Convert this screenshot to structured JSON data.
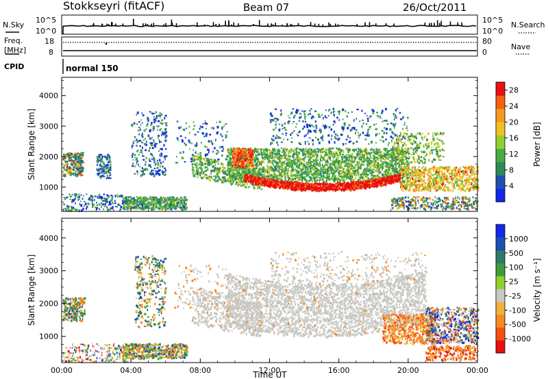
{
  "header": {
    "station": "Stokkseyri (fitACF)",
    "beam": "Beam 07",
    "date": "26/Oct/2011"
  },
  "sky_panel": {
    "left_label": "N.Sky",
    "right_label": "N.Search",
    "left_ticks": [
      "10^5",
      "10^0"
    ],
    "right_ticks": [
      "10^5",
      "10^0"
    ]
  },
  "freq_panel": {
    "left_label_1": "Freq.",
    "left_label_2": "[MHz]",
    "right_label": "Nave",
    "left_ticks": [
      "18",
      "8"
    ],
    "right_ticks": [
      "80",
      "0"
    ]
  },
  "cpid_panel": {
    "label": "CPID",
    "mode_text": "normal 150"
  },
  "colors": {
    "power": [
      "#1428e8",
      "#1e4fb4",
      "#2e8a5a",
      "#4caa44",
      "#90d030",
      "#f0c020",
      "#f59a20",
      "#f56010",
      "#e81010"
    ],
    "velocity_neg": [
      "#e81010",
      "#f55010",
      "#f58a20",
      "#f0b040"
    ],
    "velocity_mid": "#c8c8c4",
    "velocity_pos": [
      "#90d030",
      "#3f9a3a",
      "#2e7a68",
      "#1e4fb4",
      "#1428e8"
    ]
  },
  "chart_data": [
    {
      "type": "heatmap",
      "name": "power",
      "ylabel": "Slant Range [km]",
      "y_ticks": [
        "1000",
        "2000",
        "3000",
        "4000"
      ],
      "ylim": [
        200,
        4600
      ],
      "x_ticks": [
        "00:00",
        "04:00",
        "08:00",
        "12:00",
        "16:00",
        "20:00",
        "00:00"
      ],
      "xlim": [
        0,
        24
      ],
      "colorbar": {
        "label": "Power [dB]",
        "ticks": [
          "4",
          "8",
          "12",
          "16",
          "20",
          "24",
          "28"
        ],
        "range": [
          0,
          30
        ]
      }
    },
    {
      "type": "heatmap",
      "name": "velocity",
      "ylabel": "Slant Range [km]",
      "y_ticks": [
        "1000",
        "2000",
        "3000",
        "4000"
      ],
      "ylim": [
        200,
        4600
      ],
      "x_ticks": [
        "00:00",
        "04:00",
        "08:00",
        "12:00",
        "16:00",
        "20:00",
        "00:00"
      ],
      "xlabel": "Time UT",
      "xlim": [
        0,
        24
      ],
      "colorbar": {
        "label": "Velocity [m s⁻¹]",
        "ticks": [
          "1000",
          "500",
          "100",
          "25",
          "-25",
          "-100",
          "-500",
          "-1000"
        ]
      }
    }
  ]
}
